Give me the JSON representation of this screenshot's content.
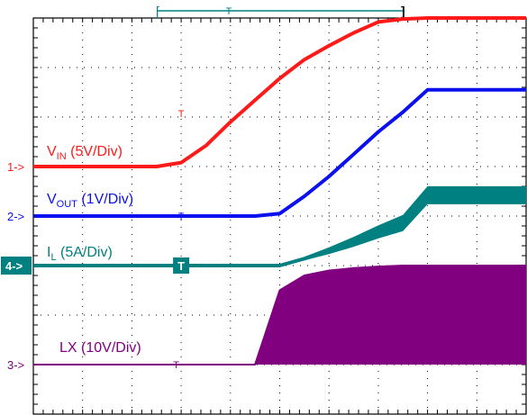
{
  "chart_data": {
    "type": "line",
    "title": "",
    "xlabel": "",
    "ylabel": "",
    "grid": true,
    "x_divisions": 10,
    "y_divisions": 8,
    "x": [
      0,
      0.5,
      1,
      1.5,
      2,
      2.5,
      3,
      3.5,
      4,
      4.5,
      5,
      5.5,
      6,
      6.5,
      7,
      7.5,
      8,
      8.5,
      9,
      9.5,
      10
    ],
    "series": [
      {
        "key": "vin",
        "label_main": "V",
        "label_sub": "IN",
        "label_rest": " (5V/Div)",
        "marker": "1->",
        "color": "#ff1a1a",
        "unit_per_div": 5,
        "baseline_div": 5,
        "values": [
          0,
          0,
          0,
          0,
          0,
          0,
          0.4,
          2.1,
          4.5,
          6.7,
          8.9,
          10.8,
          12.2,
          13.5,
          14.6,
          14.9,
          15,
          15,
          15,
          15,
          15
        ]
      },
      {
        "key": "vout",
        "label_main": "V",
        "label_sub": "OUT",
        "label_rest": " (1V/Div)",
        "marker": "2->",
        "color": "#0b10ee",
        "unit_per_div": 1,
        "baseline_div": 4,
        "values": [
          0,
          0,
          0,
          0,
          0,
          0,
          0,
          0,
          0,
          0,
          0.05,
          0.4,
          0.8,
          1.25,
          1.7,
          2.1,
          2.55,
          2.55,
          2.55,
          2.55,
          2.55
        ]
      },
      {
        "key": "il",
        "label_main": "I",
        "label_sub": "L",
        "label_rest": " (5A/Div)",
        "marker": "4->",
        "color": "#008080",
        "unit_per_div": 5,
        "baseline_div": 3,
        "values": [
          0,
          0,
          0,
          0,
          0,
          0,
          0,
          0,
          0,
          0,
          0,
          0.7,
          1.5,
          2.4,
          3.4,
          4.3,
          7.1,
          7.1,
          7.1,
          7.1,
          7.1
        ]
      },
      {
        "key": "lx",
        "label_main": "LX",
        "label_sub": "",
        "label_rest": " (10V/Div)",
        "marker": "3->",
        "color": "#800080",
        "unit_per_div": 10,
        "baseline_div": 1,
        "values": [
          0,
          0,
          0,
          0,
          0,
          0,
          0,
          0,
          0,
          0,
          15,
          18,
          19,
          19.5,
          19.8,
          20,
          20,
          20,
          20,
          20,
          20
        ]
      }
    ]
  }
}
